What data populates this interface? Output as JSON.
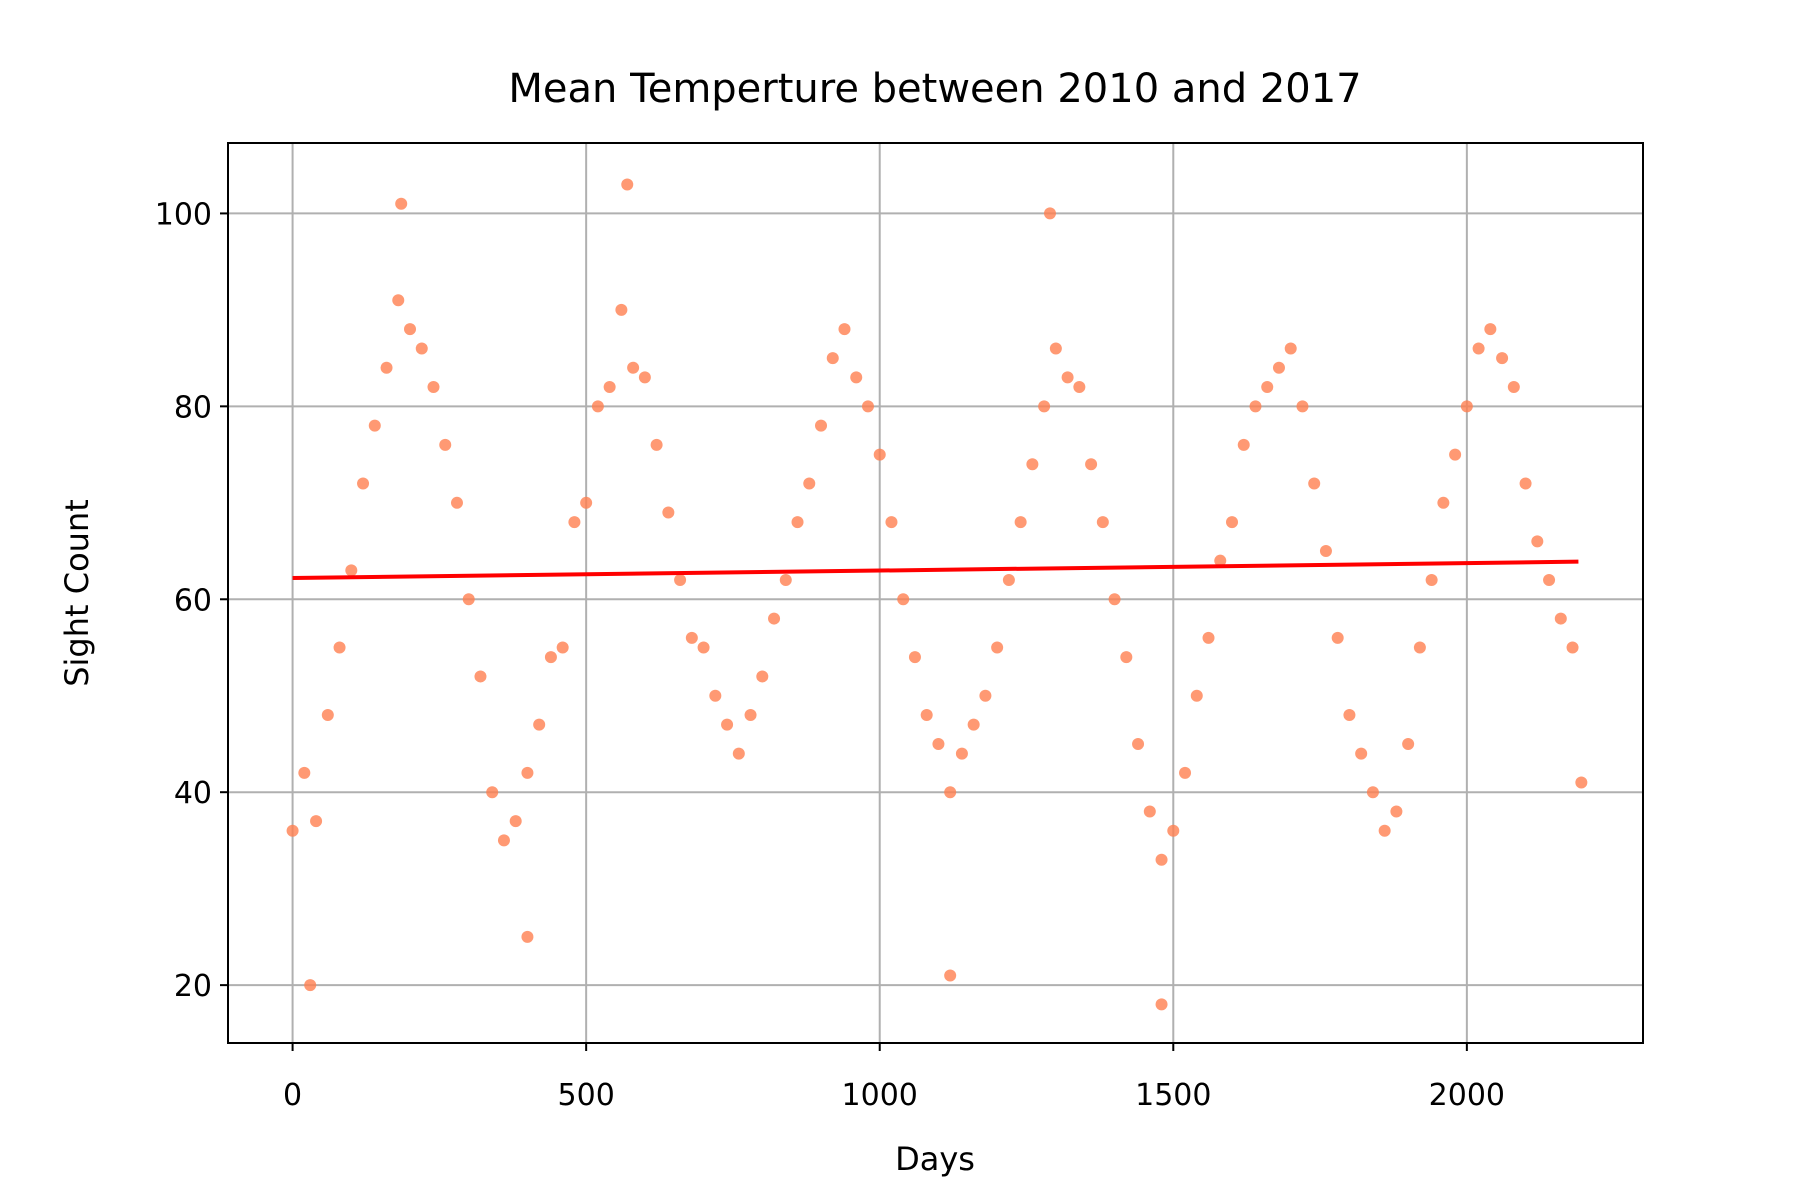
{
  "chart_data": {
    "type": "scatter",
    "title": "Mean Temperture between 2010 and 2017",
    "x_label": "Days",
    "y_label": "Sight Count",
    "xlim": [
      -110,
      2300
    ],
    "ylim": [
      14,
      107.3
    ],
    "xticks": [
      0,
      500,
      1000,
      1500,
      2000
    ],
    "yticks": [
      20,
      40,
      60,
      80,
      100
    ],
    "grid": true,
    "series": [
      {
        "kind": "scatter",
        "color": "#ff7f50",
        "x": [
          0,
          20,
          40,
          60,
          80,
          100,
          120,
          140,
          160,
          180,
          200,
          220,
          240,
          260,
          280,
          300,
          320,
          340,
          360,
          380,
          400,
          420,
          440,
          460,
          480,
          500,
          520,
          540,
          560,
          580,
          600,
          620,
          640,
          660,
          680,
          700,
          720,
          740,
          760,
          780,
          800,
          820,
          840,
          860,
          880,
          900,
          920,
          940,
          960,
          980,
          1000,
          1020,
          1040,
          1060,
          1080,
          1100,
          1120,
          1140,
          1160,
          1180,
          1200,
          1220,
          1240,
          1260,
          1280,
          1300,
          1320,
          1340,
          1360,
          1380,
          1400,
          1420,
          1440,
          1460,
          1480,
          1500,
          1520,
          1540,
          1560,
          1580,
          1600,
          1620,
          1640,
          1660,
          1680,
          1700,
          1720,
          1740,
          1760,
          1780,
          1800,
          1820,
          1840,
          1860,
          1880,
          1900,
          1920,
          1940,
          1960,
          1980,
          2000,
          2020,
          2040,
          2060,
          2080,
          2100,
          2120,
          2140,
          2160,
          2180,
          30,
          570,
          185,
          1290,
          1480,
          1120,
          400,
          2195
        ],
        "values": [
          36,
          42,
          37,
          48,
          55,
          63,
          72,
          78,
          84,
          91,
          88,
          86,
          82,
          76,
          70,
          60,
          52,
          40,
          35,
          37,
          42,
          47,
          54,
          55,
          68,
          70,
          80,
          82,
          90,
          84,
          83,
          76,
          69,
          62,
          56,
          55,
          50,
          47,
          44,
          48,
          52,
          58,
          62,
          68,
          72,
          78,
          85,
          88,
          83,
          80,
          75,
          68,
          60,
          54,
          48,
          45,
          40,
          44,
          47,
          50,
          55,
          62,
          68,
          74,
          80,
          86,
          83,
          82,
          74,
          68,
          60,
          54,
          45,
          38,
          33,
          36,
          42,
          50,
          56,
          64,
          68,
          76,
          80,
          82,
          84,
          86,
          80,
          72,
          65,
          56,
          48,
          44,
          40,
          36,
          38,
          45,
          55,
          62,
          70,
          75,
          80,
          86,
          88,
          85,
          82,
          72,
          66,
          62,
          58,
          55,
          20,
          103,
          101,
          100,
          18,
          21,
          25,
          41
        ]
      },
      {
        "kind": "line",
        "color": "#ff0000",
        "x": [
          0,
          2190
        ],
        "values": [
          62.2,
          63.9
        ]
      }
    ]
  }
}
